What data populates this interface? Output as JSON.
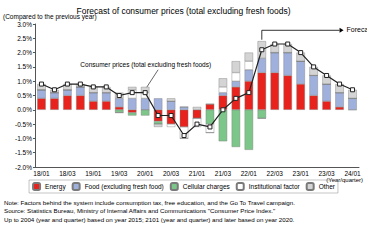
{
  "chart_data": {
    "type": "bar",
    "title": "Forecast of consumer prices (total excluding fresh foods)",
    "y_label": "(Compared to the previous year)",
    "x_label": "(Year/quarter)",
    "categories": [
      "18/01",
      null,
      "18/03",
      null,
      "19/01",
      null,
      "19/03",
      null,
      "20/01",
      null,
      "20/03",
      null,
      "21/01",
      null,
      "21/03",
      null,
      "22/01",
      null,
      "22/03",
      null,
      "23/01",
      null,
      "23/03",
      null,
      "24/01"
    ],
    "stacked": true,
    "grid": false,
    "legend": "bottom",
    "series": [
      {
        "name": "Energy",
        "type": "bar",
        "color": "#e8231e",
        "values": [
          0.4,
          0.4,
          0.5,
          0.5,
          0.3,
          0.3,
          0.1,
          -0.1,
          0.0,
          -0.4,
          -0.5,
          -0.6,
          -0.3,
          0.2,
          0.5,
          0.8,
          1.0,
          1.3,
          1.3,
          1.2,
          0.9,
          0.5,
          0.3,
          0.1,
          0.0
        ]
      },
      {
        "name": "Food (excluding fresh food)",
        "type": "bar",
        "color": "#9fb0dc",
        "values": [
          0.3,
          0.2,
          0.2,
          0.3,
          0.3,
          0.3,
          0.3,
          0.4,
          0.4,
          0.4,
          0.3,
          0.1,
          0.0,
          0.0,
          0.1,
          0.2,
          0.4,
          0.5,
          0.7,
          0.8,
          0.8,
          0.7,
          0.6,
          0.5,
          0.4
        ]
      },
      {
        "name": "Cellular charges",
        "type": "bar",
        "color": "#7cc68a",
        "values": [
          0,
          0,
          0,
          0,
          0,
          0,
          -0.1,
          -0.1,
          -0.2,
          -0.1,
          0,
          0,
          0,
          -0.5,
          -1.1,
          -1.3,
          -1.4,
          -0.3,
          0,
          0,
          0,
          0,
          0,
          0,
          0
        ]
      },
      {
        "name": "Institutional factor",
        "type": "bar",
        "color": "#ffffff",
        "values": [
          0,
          0,
          0,
          0,
          0,
          0,
          0,
          0.3,
          0.2,
          0.0,
          -0.1,
          -0.4,
          -0.3,
          -0.3,
          0.2,
          0.3,
          0.3,
          0,
          0,
          0,
          0,
          0,
          0,
          0,
          0
        ]
      },
      {
        "name": "Other",
        "type": "bar",
        "color": "#d4d4d4",
        "values": [
          0.2,
          0.1,
          0.2,
          0.1,
          0.2,
          0.2,
          0.2,
          0.1,
          0.2,
          -0.1,
          0.1,
          0.0,
          0.1,
          0.0,
          0.3,
          0.4,
          0.3,
          0.6,
          0.3,
          0.3,
          0.3,
          0.3,
          0.3,
          0.3,
          0.3
        ]
      },
      {
        "name": "Consumer prices (total excluding fresh foods)",
        "type": "line",
        "color": "#222222",
        "marker": "square",
        "values": [
          0.9,
          0.7,
          0.9,
          0.9,
          0.8,
          0.8,
          0.5,
          0.6,
          0.6,
          -0.2,
          -0.2,
          -0.9,
          -0.5,
          -0.6,
          0.0,
          0.4,
          0.6,
          2.1,
          2.3,
          2.3,
          2.0,
          1.5,
          1.2,
          0.9,
          0.7
        ]
      }
    ],
    "ylim": [
      -2,
      3
    ],
    "yticks": [
      {
        "value": -2,
        "label": "-2.0%"
      },
      {
        "value": -1.5,
        "label": "-1.5%"
      },
      {
        "value": -1,
        "label": "-1.0%"
      },
      {
        "value": -0.5,
        "label": "-0.5%"
      },
      {
        "value": 0,
        "label": "0.0%"
      },
      {
        "value": 0.5,
        "label": "0.5%"
      },
      {
        "value": 1,
        "label": "1.0%"
      },
      {
        "value": 1.5,
        "label": "1.5%"
      },
      {
        "value": 2,
        "label": "2.0%"
      },
      {
        "value": 2.5,
        "label": "2.5%"
      },
      {
        "value": 3,
        "label": "3.0%"
      }
    ],
    "annotations": [
      {
        "text": "Forecast"
      },
      {
        "text": "Consumer prices (total excluding fresh foods)"
      }
    ],
    "notes": [
      "Note: Factors behind the system include consumption tax, free education, and the Go To Travel campaign.",
      "Source: Statistics Bureau, Ministry of Internal Affairs and Communications \"Consumer Price Index.\"",
      "Up to 2004 (year and quarter) based on year 2015; 2101 (year and quarter) and later based on year 2020."
    ]
  }
}
